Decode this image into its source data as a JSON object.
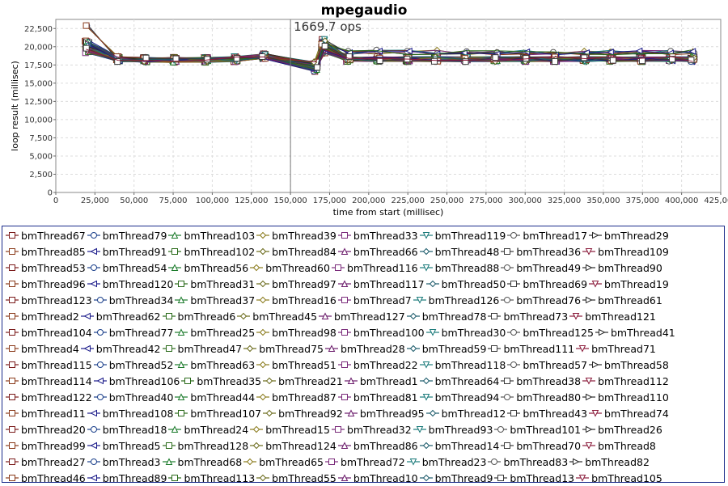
{
  "chart_data": {
    "type": "line",
    "title": "mpegaudio",
    "xlabel": "time from start (millisec)",
    "ylabel": "loop result (millisec)",
    "xlim": [
      0,
      425000
    ],
    "ylim": [
      0,
      23750
    ],
    "x_ticks": [
      "0",
      "25,000",
      "50,000",
      "75,000",
      "100,000",
      "125,000",
      "150,000",
      "175,000",
      "200,000",
      "225,000",
      "250,000",
      "275,000",
      "300,000",
      "325,000",
      "350,000",
      "375,000",
      "400,000",
      "425,000"
    ],
    "y_ticks": [
      "0",
      "2,500",
      "5,000",
      "7,500",
      "10,000",
      "12,500",
      "15,000",
      "17,500",
      "20,000",
      "22,500"
    ],
    "grid": true,
    "legend_position": "bottom",
    "annotation": {
      "x": 150000,
      "label": "1669.7 ops"
    },
    "x": [
      20000,
      40000,
      57000,
      76000,
      96000,
      115000,
      133000,
      166000,
      171000,
      187000,
      206000,
      225000,
      243000,
      262000,
      281000,
      300000,
      319000,
      338000,
      355000,
      374000,
      393000,
      407000
    ],
    "typical_values": [
      20000,
      18300,
      18200,
      18200,
      18200,
      18300,
      18700,
      17300,
      20000,
      18300,
      18300,
      18300,
      18300,
      18300,
      18300,
      18300,
      18300,
      18300,
      18300,
      18300,
      18300,
      18300
    ],
    "series": [
      {
        "name": "bmThread67"
      },
      {
        "name": "bmThread79"
      },
      {
        "name": "bmThread103"
      },
      {
        "name": "bmThread39"
      },
      {
        "name": "bmThread33"
      },
      {
        "name": "bmThread119"
      },
      {
        "name": "bmThread17"
      },
      {
        "name": "bmThread29"
      },
      {
        "name": "bmThread85"
      },
      {
        "name": "bmThread91"
      },
      {
        "name": "bmThread102"
      },
      {
        "name": "bmThread84"
      },
      {
        "name": "bmThread66"
      },
      {
        "name": "bmThread48"
      },
      {
        "name": "bmThread36"
      },
      {
        "name": "bmThread109"
      },
      {
        "name": "bmThread53"
      },
      {
        "name": "bmThread54"
      },
      {
        "name": "bmThread56"
      },
      {
        "name": "bmThread60"
      },
      {
        "name": "bmThread116"
      },
      {
        "name": "bmThread88"
      },
      {
        "name": "bmThread49"
      },
      {
        "name": "bmThread90"
      },
      {
        "name": "bmThread96"
      },
      {
        "name": "bmThread120"
      },
      {
        "name": "bmThread31"
      },
      {
        "name": "bmThread97"
      },
      {
        "name": "bmThread117"
      },
      {
        "name": "bmThread50"
      },
      {
        "name": "bmThread69"
      },
      {
        "name": "bmThread19"
      },
      {
        "name": "bmThread123"
      },
      {
        "name": "bmThread34"
      },
      {
        "name": "bmThread37"
      },
      {
        "name": "bmThread16"
      },
      {
        "name": "bmThread7"
      },
      {
        "name": "bmThread126"
      },
      {
        "name": "bmThread76"
      },
      {
        "name": "bmThread61"
      },
      {
        "name": "bmThread2"
      },
      {
        "name": "bmThread62"
      },
      {
        "name": "bmThread6"
      },
      {
        "name": "bmThread45"
      },
      {
        "name": "bmThread127"
      },
      {
        "name": "bmThread78"
      },
      {
        "name": "bmThread73"
      },
      {
        "name": "bmThread121"
      },
      {
        "name": "bmThread104"
      },
      {
        "name": "bmThread77"
      },
      {
        "name": "bmThread25"
      },
      {
        "name": "bmThread98"
      },
      {
        "name": "bmThread100"
      },
      {
        "name": "bmThread30"
      },
      {
        "name": "bmThread125"
      },
      {
        "name": "bmThread41"
      },
      {
        "name": "bmThread4"
      },
      {
        "name": "bmThread42"
      },
      {
        "name": "bmThread47"
      },
      {
        "name": "bmThread75"
      },
      {
        "name": "bmThread28"
      },
      {
        "name": "bmThread59"
      },
      {
        "name": "bmThread111"
      },
      {
        "name": "bmThread71"
      },
      {
        "name": "bmThread115"
      },
      {
        "name": "bmThread52"
      },
      {
        "name": "bmThread63"
      },
      {
        "name": "bmThread51"
      },
      {
        "name": "bmThread22"
      },
      {
        "name": "bmThread118"
      },
      {
        "name": "bmThread57"
      },
      {
        "name": "bmThread58"
      },
      {
        "name": "bmThread114"
      },
      {
        "name": "bmThread106"
      },
      {
        "name": "bmThread35"
      },
      {
        "name": "bmThread21"
      },
      {
        "name": "bmThread1"
      },
      {
        "name": "bmThread64"
      },
      {
        "name": "bmThread38"
      },
      {
        "name": "bmThread112"
      },
      {
        "name": "bmThread122"
      },
      {
        "name": "bmThread40"
      },
      {
        "name": "bmThread44"
      },
      {
        "name": "bmThread87"
      },
      {
        "name": "bmThread81"
      },
      {
        "name": "bmThread94"
      },
      {
        "name": "bmThread80"
      },
      {
        "name": "bmThread110"
      },
      {
        "name": "bmThread11"
      },
      {
        "name": "bmThread108"
      },
      {
        "name": "bmThread107"
      },
      {
        "name": "bmThread92"
      },
      {
        "name": "bmThread95"
      },
      {
        "name": "bmThread12"
      },
      {
        "name": "bmThread43"
      },
      {
        "name": "bmThread74"
      },
      {
        "name": "bmThread20"
      },
      {
        "name": "bmThread18"
      },
      {
        "name": "bmThread24"
      },
      {
        "name": "bmThread15"
      },
      {
        "name": "bmThread32"
      },
      {
        "name": "bmThread93"
      },
      {
        "name": "bmThread101"
      },
      {
        "name": "bmThread26"
      },
      {
        "name": "bmThread99"
      },
      {
        "name": "bmThread5"
      },
      {
        "name": "bmThread128"
      },
      {
        "name": "bmThread124"
      },
      {
        "name": "bmThread86"
      },
      {
        "name": "bmThread14"
      },
      {
        "name": "bmThread70"
      },
      {
        "name": "bmThread8"
      },
      {
        "name": "bmThread27"
      },
      {
        "name": "bmThread3"
      },
      {
        "name": "bmThread68"
      },
      {
        "name": "bmThread65"
      },
      {
        "name": "bmThread72"
      },
      {
        "name": "bmThread23"
      },
      {
        "name": "bmThread83"
      },
      {
        "name": "bmThread82"
      },
      {
        "name": "bmThread46"
      },
      {
        "name": "bmThread89"
      },
      {
        "name": "bmThread113"
      },
      {
        "name": "bmThread55"
      },
      {
        "name": "bmThread10"
      },
      {
        "name": "bmThread9"
      },
      {
        "name": "bmThread13"
      },
      {
        "name": "bmThread105"
      }
    ],
    "colors": [
      "#7a1a1a",
      "#1a3f8a",
      "#1a7a2a",
      "#8a7a1a",
      "#7a2a7a",
      "#1a7a7a",
      "#555555",
      "#2a2a2a",
      "#8a3a1a",
      "#1a1a8a",
      "#2a6a1a",
      "#6a6a1a",
      "#6a1a6a",
      "#1a5a6a",
      "#3a3a3a",
      "#8a1a3a"
    ],
    "markers": [
      "square",
      "circle",
      "triangle-up",
      "diamond",
      "square",
      "triangle-down",
      "circle",
      "triangle-right",
      "square",
      "triangle-left",
      "square",
      "diamond",
      "triangle-up",
      "diamond",
      "square",
      "triangle-down"
    ]
  }
}
